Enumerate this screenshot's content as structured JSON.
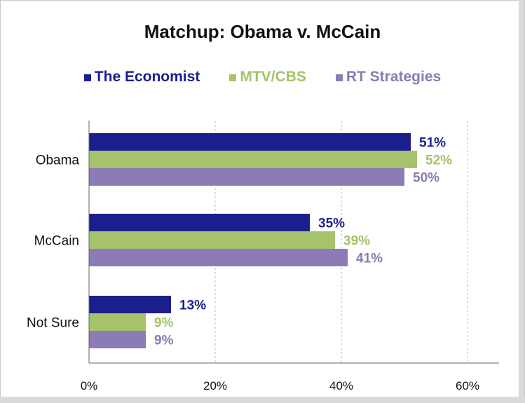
{
  "colors": {
    "economist": "#1a1f8c",
    "mtv_cbs": "#a6c26b",
    "rt_strategies": "#8c7bb5",
    "axis": "#666666",
    "grid": "#bdbdbd"
  },
  "chart_data": {
    "type": "bar",
    "orientation": "horizontal",
    "title": "Matchup: Obama v. McCain",
    "categories": [
      "Obama",
      "McCain",
      "Not Sure"
    ],
    "series": [
      {
        "name": "The Economist",
        "values": [
          51,
          35,
          13
        ],
        "labels": [
          "51%",
          "35%",
          "13%"
        ],
        "color": "#1a1f8c"
      },
      {
        "name": "MTV/CBS",
        "values": [
          52,
          39,
          9
        ],
        "labels": [
          "52%",
          "39%",
          "9%"
        ],
        "color": "#a6c26b"
      },
      {
        "name": "RT Strategies",
        "values": [
          50,
          41,
          9
        ],
        "labels": [
          "50%",
          "41%",
          "9%"
        ],
        "color": "#8c7bb5"
      }
    ],
    "xlim": [
      0,
      65
    ],
    "xticks": [
      0,
      20,
      40,
      60
    ],
    "xtick_labels": [
      "0%",
      "20%",
      "40%",
      "60%"
    ],
    "grid": "vertical dashed",
    "legend": "top"
  }
}
